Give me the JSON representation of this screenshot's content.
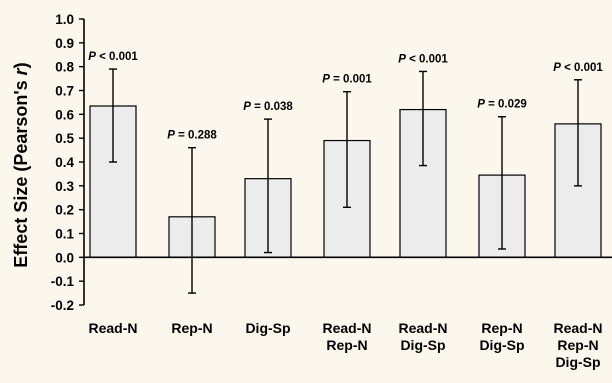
{
  "chart_data": {
    "type": "bar",
    "title": "",
    "xlabel": "",
    "ylabel": {
      "main": "Effect Size (Pearson's ",
      "italic": "r",
      "close": ")"
    },
    "ylim": [
      -0.2,
      1.0
    ],
    "y_ticks": [
      "1.0",
      "0.9",
      "0.8",
      "0.7",
      "0.6",
      "0.5",
      "0.4",
      "0.3",
      "0.2",
      "0.1",
      "0.0",
      "-0.1",
      "-0.2"
    ],
    "y_tick_values": [
      1.0,
      0.9,
      0.8,
      0.7,
      0.6,
      0.5,
      0.4,
      0.3,
      0.2,
      0.1,
      0.0,
      -0.1,
      -0.2
    ],
    "grid": false,
    "bar_color": "#ececec",
    "background": "#fbf7ec",
    "categories": [
      [
        "Read-N"
      ],
      [
        "Rep-N"
      ],
      [
        "Dig-Sp"
      ],
      [
        "Read-N",
        "Rep-N"
      ],
      [
        "Read-N",
        "Dig-Sp"
      ],
      [
        "Rep-N",
        "Dig-Sp"
      ],
      [
        "Read-N",
        "Rep-N",
        "Dig-Sp"
      ]
    ],
    "values": [
      0.635,
      0.17,
      0.33,
      0.49,
      0.62,
      0.345,
      0.56
    ],
    "error_low": [
      0.4,
      -0.15,
      0.02,
      0.21,
      0.385,
      0.035,
      0.3
    ],
    "error_high": [
      0.79,
      0.46,
      0.58,
      0.695,
      0.78,
      0.59,
      0.745
    ],
    "annotations": [
      {
        "p": "P",
        "text": " < 0.001"
      },
      {
        "p": "P",
        "text": " = 0.288"
      },
      {
        "p": "P",
        "text": " = 0.038"
      },
      {
        "p": "P",
        "text": " = 0.001"
      },
      {
        "p": "P",
        "text": " < 0.001"
      },
      {
        "p": "P",
        "text": " = 0.029"
      },
      {
        "p": "P",
        "text": " < 0.001"
      }
    ]
  }
}
